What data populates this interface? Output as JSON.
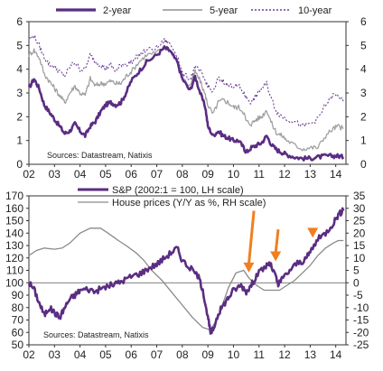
{
  "chart_data": [
    {
      "type": "line",
      "title": "",
      "x_range": [
        2002,
        2014.4
      ],
      "x_ticks": [
        "02",
        "03",
        "04",
        "05",
        "06",
        "07",
        "08",
        "09",
        "10",
        "11",
        "12",
        "13",
        "14"
      ],
      "ylim_left": [
        0,
        6
      ],
      "ylim_right": [
        0,
        6
      ],
      "y_ticks_left": [
        0,
        1,
        2,
        3,
        4,
        5,
        6
      ],
      "y_ticks_right": [
        0,
        1,
        2,
        3,
        4,
        5,
        6
      ],
      "grid": false,
      "legend_position": "top",
      "source": "Sources: Datastream,  Natixis",
      "colors": {
        "two_year": "#5a2d82",
        "five_year": "#a0a0a0",
        "ten_year": "#6b3f9a"
      },
      "series": [
        {
          "name": "2-year",
          "style": "solid-thick",
          "x": [
            2002.0,
            2002.2,
            2002.4,
            2002.6,
            2002.8,
            2003.0,
            2003.2,
            2003.4,
            2003.6,
            2003.8,
            2004.0,
            2004.2,
            2004.4,
            2004.6,
            2004.8,
            2005.0,
            2005.2,
            2005.4,
            2005.6,
            2005.8,
            2006.0,
            2006.3,
            2006.6,
            2007.0,
            2007.3,
            2007.5,
            2007.8,
            2008.0,
            2008.3,
            2008.5,
            2008.7,
            2008.9,
            2009.0,
            2009.2,
            2009.4,
            2009.6,
            2009.8,
            2010.0,
            2010.2,
            2010.4,
            2010.5,
            2010.7,
            2010.9,
            2011.1,
            2011.3,
            2011.5,
            2011.7,
            2011.9,
            2012.1,
            2012.4,
            2012.7,
            2013.0,
            2013.3,
            2013.6,
            2013.9,
            2014.1,
            2014.3
          ],
          "values": [
            3.2,
            3.6,
            3.2,
            2.5,
            2.2,
            1.9,
            1.6,
            1.3,
            1.4,
            1.7,
            1.4,
            1.2,
            1.6,
            1.8,
            2.2,
            2.5,
            2.6,
            2.5,
            2.6,
            3.0,
            3.5,
            3.9,
            4.3,
            4.6,
            4.9,
            4.8,
            4.3,
            3.6,
            3.1,
            3.7,
            3.0,
            2.4,
            1.6,
            1.2,
            1.4,
            1.2,
            1.1,
            1.0,
            1.0,
            0.7,
            0.5,
            0.7,
            0.8,
            0.9,
            1.2,
            0.8,
            0.6,
            0.5,
            0.4,
            0.3,
            0.25,
            0.25,
            0.3,
            0.35,
            0.35,
            0.35,
            0.3
          ]
        },
        {
          "name": "5-year",
          "style": "solid",
          "x": [
            2002.0,
            2002.2,
            2002.4,
            2002.6,
            2002.8,
            2003.0,
            2003.2,
            2003.4,
            2003.6,
            2003.8,
            2004.0,
            2004.2,
            2004.4,
            2004.6,
            2004.8,
            2005.0,
            2005.2,
            2005.4,
            2005.6,
            2005.8,
            2006.0,
            2006.3,
            2006.6,
            2007.0,
            2007.3,
            2007.5,
            2007.8,
            2008.0,
            2008.3,
            2008.5,
            2008.7,
            2008.9,
            2009.0,
            2009.2,
            2009.4,
            2009.6,
            2009.8,
            2010.0,
            2010.2,
            2010.4,
            2010.5,
            2010.7,
            2010.9,
            2011.1,
            2011.3,
            2011.5,
            2011.7,
            2011.9,
            2012.1,
            2012.4,
            2012.7,
            2013.0,
            2013.3,
            2013.6,
            2013.9,
            2014.1,
            2014.3
          ],
          "values": [
            4.6,
            4.8,
            4.5,
            3.8,
            3.5,
            3.2,
            2.9,
            2.6,
            3.0,
            3.3,
            3.0,
            2.9,
            3.6,
            3.3,
            3.4,
            3.4,
            3.5,
            3.4,
            3.4,
            3.7,
            3.9,
            4.3,
            4.6,
            4.7,
            4.9,
            4.8,
            4.4,
            3.6,
            3.3,
            3.9,
            3.5,
            2.9,
            2.5,
            2.1,
            2.6,
            2.7,
            2.6,
            2.4,
            2.4,
            2.2,
            1.8,
            1.7,
            1.9,
            2.0,
            2.3,
            1.7,
            1.3,
            1.2,
            1.0,
            0.8,
            0.65,
            0.7,
            0.7,
            1.2,
            1.5,
            1.6,
            1.5
          ]
        },
        {
          "name": "10-year",
          "style": "dashed",
          "x": [
            2002.0,
            2002.2,
            2002.4,
            2002.6,
            2002.8,
            2003.0,
            2003.2,
            2003.4,
            2003.6,
            2003.8,
            2004.0,
            2004.2,
            2004.4,
            2004.6,
            2004.8,
            2005.0,
            2005.2,
            2005.4,
            2005.6,
            2005.8,
            2006.0,
            2006.3,
            2006.6,
            2007.0,
            2007.3,
            2007.5,
            2007.8,
            2008.0,
            2008.3,
            2008.5,
            2008.7,
            2008.9,
            2009.0,
            2009.2,
            2009.4,
            2009.6,
            2009.8,
            2010.0,
            2010.2,
            2010.4,
            2010.5,
            2010.7,
            2010.9,
            2011.1,
            2011.3,
            2011.5,
            2011.7,
            2011.9,
            2012.1,
            2012.4,
            2012.7,
            2013.0,
            2013.3,
            2013.6,
            2013.9,
            2014.1,
            2014.3
          ],
          "values": [
            5.3,
            5.4,
            5.0,
            4.5,
            4.2,
            4.1,
            3.9,
            3.7,
            4.1,
            4.3,
            4.0,
            4.0,
            4.6,
            4.3,
            4.2,
            4.0,
            4.2,
            3.9,
            4.2,
            4.2,
            4.3,
            4.6,
            4.8,
            4.9,
            5.2,
            5.1,
            4.6,
            3.8,
            3.6,
            4.1,
            3.9,
            3.5,
            3.3,
            3.0,
            3.6,
            3.5,
            3.3,
            3.3,
            3.3,
            3.0,
            2.8,
            2.6,
            2.9,
            3.2,
            3.4,
            2.7,
            2.2,
            2.0,
            1.9,
            1.8,
            1.6,
            1.7,
            1.9,
            2.5,
            2.9,
            2.9,
            2.6
          ]
        }
      ]
    },
    {
      "type": "line",
      "title": "",
      "x_range": [
        2002,
        2014.4
      ],
      "x_ticks": [
        "02",
        "03",
        "04",
        "05",
        "06",
        "07",
        "08",
        "09",
        "10",
        "11",
        "12",
        "13",
        "14"
      ],
      "ylim_left": [
        50,
        170
      ],
      "ylim_right": [
        -25,
        35
      ],
      "y_ticks_left": [
        50,
        60,
        70,
        80,
        90,
        100,
        110,
        120,
        130,
        140,
        150,
        160,
        170
      ],
      "y_ticks_right": [
        -25,
        -20,
        -15,
        -10,
        -5,
        0,
        5,
        10,
        15,
        20,
        25,
        30,
        35
      ],
      "reference_line_left": 100,
      "grid": false,
      "legend_position": "top-center",
      "source": "Sources: Datastream,  Natixis",
      "colors": {
        "sp": "#5a2d82",
        "house": "#8a8a8a",
        "arrow": "#f07f1f",
        "refline": "#555555"
      },
      "annotations": [
        {
          "type": "arrow",
          "from_x": 2010.8,
          "from_y_right": 29,
          "to_x": 2010.6,
          "to_y_left": 109
        },
        {
          "type": "arrow",
          "from_x": 2011.75,
          "from_y_right": 21.5,
          "to_x": 2011.65,
          "to_y_left": 118
        },
        {
          "type": "arrow",
          "from_x": 2013.25,
          "from_y_right": 21.5,
          "to_x": 2013.1,
          "to_y_left": 137
        }
      ],
      "series": [
        {
          "name": "S&P (2002:1 = 100, LH scale)",
          "axis": "left",
          "style": "solid-thick",
          "x": [
            2002.0,
            2002.2,
            2002.4,
            2002.6,
            2002.8,
            2003.0,
            2003.2,
            2003.4,
            2003.6,
            2003.8,
            2004.0,
            2004.3,
            2004.6,
            2004.9,
            2005.2,
            2005.5,
            2005.8,
            2006.1,
            2006.4,
            2006.7,
            2007.0,
            2007.3,
            2007.6,
            2007.8,
            2008.0,
            2008.3,
            2008.6,
            2008.8,
            2009.0,
            2009.1,
            2009.2,
            2009.4,
            2009.6,
            2009.8,
            2010.0,
            2010.3,
            2010.5,
            2010.7,
            2010.9,
            2011.2,
            2011.4,
            2011.6,
            2011.75,
            2011.9,
            2012.2,
            2012.5,
            2012.8,
            2013.0,
            2013.3,
            2013.6,
            2013.9,
            2014.1,
            2014.3
          ],
          "values": [
            100,
            95,
            84,
            74,
            80,
            76,
            72,
            80,
            87,
            90,
            94,
            95,
            93,
            96,
            98,
            100,
            103,
            106,
            108,
            112,
            115,
            120,
            125,
            128,
            118,
            112,
            106,
            95,
            72,
            60,
            62,
            75,
            82,
            88,
            94,
            98,
            93,
            98,
            106,
            112,
            116,
            108,
            98,
            103,
            110,
            116,
            118,
            125,
            135,
            140,
            148,
            155,
            158
          ]
        },
        {
          "name": "House prices (Y/Y as %, RH scale)",
          "axis": "right",
          "style": "solid",
          "x": [
            2002.0,
            2002.3,
            2002.6,
            2003.0,
            2003.3,
            2003.6,
            2004.0,
            2004.4,
            2004.8,
            2005.1,
            2005.5,
            2005.8,
            2006.2,
            2006.5,
            2006.8,
            2007.2,
            2007.6,
            2008.0,
            2008.4,
            2008.8,
            2009.1,
            2009.4,
            2009.8,
            2010.1,
            2010.4,
            2010.6,
            2010.9,
            2011.2,
            2011.5,
            2011.8,
            2012.1,
            2012.4,
            2012.7,
            2013.0,
            2013.3,
            2013.6,
            2013.9,
            2014.1,
            2014.3
          ],
          "values": [
            11,
            13,
            14,
            13.5,
            14,
            16,
            20,
            22,
            22,
            20,
            17,
            15,
            12,
            9,
            5,
            1,
            -4,
            -9,
            -14,
            -18,
            -19,
            -14,
            -2,
            4,
            5,
            2,
            -1,
            -3,
            -3,
            -3,
            -1,
            1,
            4,
            7,
            11,
            14,
            16,
            17,
            17
          ]
        }
      ]
    }
  ]
}
